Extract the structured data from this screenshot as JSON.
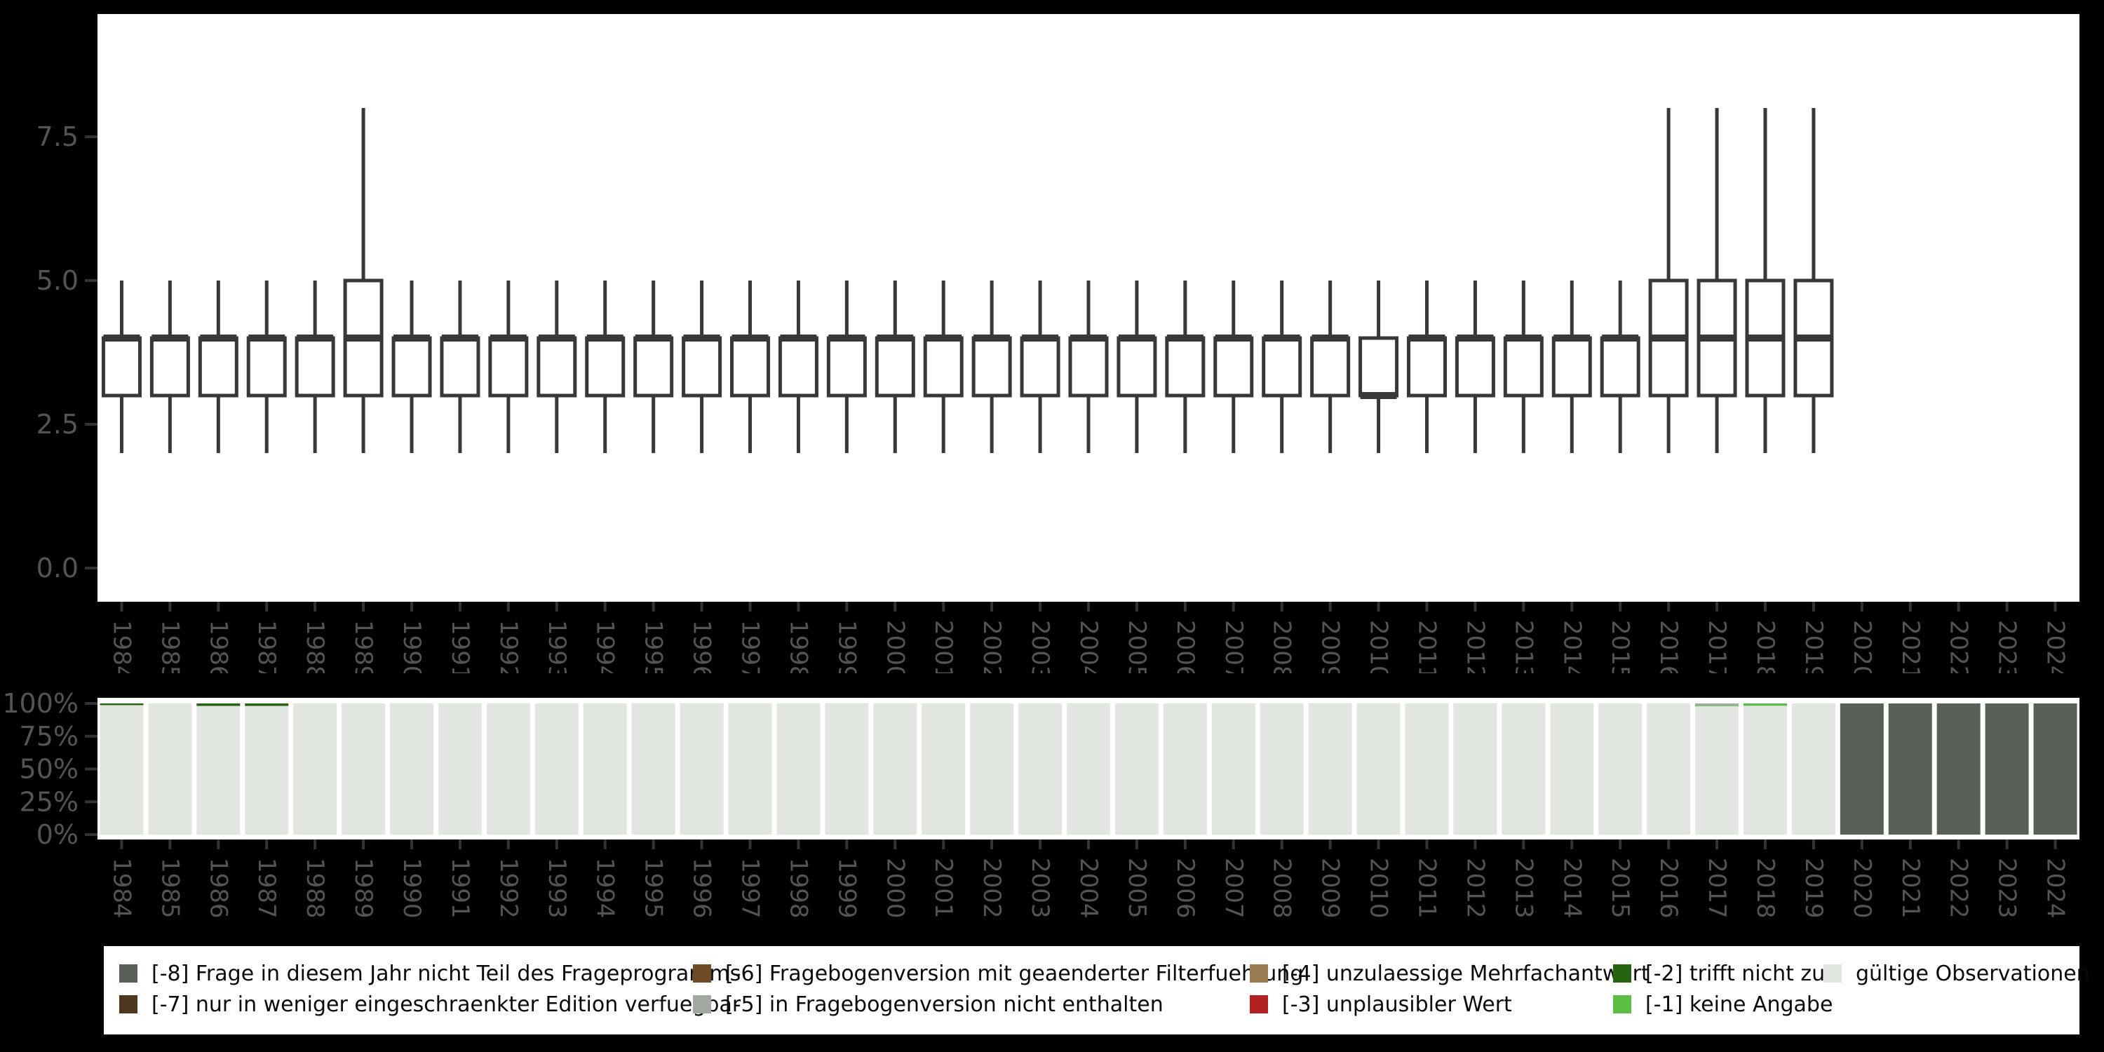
{
  "style": {
    "background": "#000000",
    "panel": "#ffffff",
    "tick": "#333333",
    "axis_text": "#545454",
    "box_stroke": "#383838",
    "legend_text": "#0a0a0a"
  },
  "colors": {
    "valid": "#e2e6e0",
    "-1": "#5abf44",
    "-2": "#266412",
    "-3": "#b32222",
    "-4": "#9a7a52",
    "-5": "#a3a7a2",
    "-6": "#6e4a26",
    "-7": "#4f3620",
    "-8": "#575f57"
  },
  "legend": {
    "rows": [
      [
        {
          "key": "-8",
          "label": "[-8] Frage in diesem Jahr nicht Teil des Frageprogramms"
        },
        {
          "key": "-6",
          "label": "[-6] Fragebogenversion mit geaenderter Filterfuehrung"
        },
        {
          "key": "-4",
          "label": "[-4] unzulaessige Mehrfachantwort"
        },
        {
          "key": "-2",
          "label": "[-2] trifft nicht zu"
        },
        {
          "key": "valid",
          "label": "gültige Observationen"
        }
      ],
      [
        {
          "key": "-7",
          "label": "[-7] nur in weniger eingeschraenkter Edition verfuegbar"
        },
        {
          "key": "-5",
          "label": "[-5] in Fragebogenversion nicht enthalten"
        },
        {
          "key": "-3",
          "label": "[-3] unplausibler Wert"
        },
        {
          "key": "-1",
          "label": "[-1] keine Angabe"
        }
      ]
    ]
  },
  "chart_data": [
    {
      "type": "boxplot",
      "title": "",
      "xlabel": "",
      "ylabel": "",
      "grid": false,
      "legend_position": "none",
      "ylim": [
        -0.6,
        9.6
      ],
      "yticks": [
        0,
        2.5,
        5,
        7.5
      ],
      "ytick_labels": [
        "0.0",
        "2.5",
        "5.0",
        "7.5"
      ],
      "categories": [
        "1984",
        "1985",
        "1986",
        "1987",
        "1988",
        "1989",
        "1990",
        "1991",
        "1992",
        "1993",
        "1994",
        "1995",
        "1996",
        "1997",
        "1998",
        "1999",
        "2000",
        "2001",
        "2002",
        "2003",
        "2004",
        "2005",
        "2006",
        "2007",
        "2008",
        "2009",
        "2010",
        "2011",
        "2012",
        "2013",
        "2014",
        "2015",
        "2016",
        "2017",
        "2018",
        "2019",
        "2020",
        "2021",
        "2022",
        "2023",
        "2024"
      ],
      "boxes": [
        {
          "lo": 2,
          "q1": 3,
          "md": 4,
          "q3": 4,
          "hi": 5
        },
        {
          "lo": 2,
          "q1": 3,
          "md": 4,
          "q3": 4,
          "hi": 5
        },
        {
          "lo": 2,
          "q1": 3,
          "md": 4,
          "q3": 4,
          "hi": 5
        },
        {
          "lo": 2,
          "q1": 3,
          "md": 4,
          "q3": 4,
          "hi": 5
        },
        {
          "lo": 2,
          "q1": 3,
          "md": 4,
          "q3": 4,
          "hi": 5
        },
        {
          "lo": 2,
          "q1": 3,
          "md": 4,
          "q3": 5,
          "hi": 8
        },
        {
          "lo": 2,
          "q1": 3,
          "md": 4,
          "q3": 4,
          "hi": 5
        },
        {
          "lo": 2,
          "q1": 3,
          "md": 4,
          "q3": 4,
          "hi": 5
        },
        {
          "lo": 2,
          "q1": 3,
          "md": 4,
          "q3": 4,
          "hi": 5
        },
        {
          "lo": 2,
          "q1": 3,
          "md": 4,
          "q3": 4,
          "hi": 5
        },
        {
          "lo": 2,
          "q1": 3,
          "md": 4,
          "q3": 4,
          "hi": 5
        },
        {
          "lo": 2,
          "q1": 3,
          "md": 4,
          "q3": 4,
          "hi": 5
        },
        {
          "lo": 2,
          "q1": 3,
          "md": 4,
          "q3": 4,
          "hi": 5
        },
        {
          "lo": 2,
          "q1": 3,
          "md": 4,
          "q3": 4,
          "hi": 5
        },
        {
          "lo": 2,
          "q1": 3,
          "md": 4,
          "q3": 4,
          "hi": 5
        },
        {
          "lo": 2,
          "q1": 3,
          "md": 4,
          "q3": 4,
          "hi": 5
        },
        {
          "lo": 2,
          "q1": 3,
          "md": 4,
          "q3": 4,
          "hi": 5
        },
        {
          "lo": 2,
          "q1": 3,
          "md": 4,
          "q3": 4,
          "hi": 5
        },
        {
          "lo": 2,
          "q1": 3,
          "md": 4,
          "q3": 4,
          "hi": 5
        },
        {
          "lo": 2,
          "q1": 3,
          "md": 4,
          "q3": 4,
          "hi": 5
        },
        {
          "lo": 2,
          "q1": 3,
          "md": 4,
          "q3": 4,
          "hi": 5
        },
        {
          "lo": 2,
          "q1": 3,
          "md": 4,
          "q3": 4,
          "hi": 5
        },
        {
          "lo": 2,
          "q1": 3,
          "md": 4,
          "q3": 4,
          "hi": 5
        },
        {
          "lo": 2,
          "q1": 3,
          "md": 4,
          "q3": 4,
          "hi": 5
        },
        {
          "lo": 2,
          "q1": 3,
          "md": 4,
          "q3": 4,
          "hi": 5
        },
        {
          "lo": 2,
          "q1": 3,
          "md": 4,
          "q3": 4,
          "hi": 5
        },
        {
          "lo": 2,
          "q1": 3,
          "md": 3,
          "q3": 4,
          "hi": 5
        },
        {
          "lo": 2,
          "q1": 3,
          "md": 4,
          "q3": 4,
          "hi": 5
        },
        {
          "lo": 2,
          "q1": 3,
          "md": 4,
          "q3": 4,
          "hi": 5
        },
        {
          "lo": 2,
          "q1": 3,
          "md": 4,
          "q3": 4,
          "hi": 5
        },
        {
          "lo": 2,
          "q1": 3,
          "md": 4,
          "q3": 4,
          "hi": 5
        },
        {
          "lo": 2,
          "q1": 3,
          "md": 4,
          "q3": 4,
          "hi": 5
        },
        {
          "lo": 2,
          "q1": 3,
          "md": 4,
          "q3": 5,
          "hi": 8
        },
        {
          "lo": 2,
          "q1": 3,
          "md": 4,
          "q3": 5,
          "hi": 8
        },
        {
          "lo": 2,
          "q1": 3,
          "md": 4,
          "q3": 5,
          "hi": 8
        },
        {
          "lo": 2,
          "q1": 3,
          "md": 4,
          "q3": 5,
          "hi": 8
        },
        null,
        null,
        null,
        null,
        null
      ]
    },
    {
      "type": "bar",
      "stacked": true,
      "title": "",
      "xlabel": "",
      "ylabel": "",
      "grid": false,
      "ylim": [
        0,
        100
      ],
      "yticks": [
        0,
        25,
        50,
        75,
        100
      ],
      "ytick_labels": [
        "0%",
        "25%",
        "50%",
        "75%",
        "100%"
      ],
      "categories": [
        "1984",
        "1985",
        "1986",
        "1987",
        "1988",
        "1989",
        "1990",
        "1991",
        "1992",
        "1993",
        "1994",
        "1995",
        "1996",
        "1997",
        "1998",
        "1999",
        "2000",
        "2001",
        "2002",
        "2003",
        "2004",
        "2005",
        "2006",
        "2007",
        "2008",
        "2009",
        "2010",
        "2011",
        "2012",
        "2013",
        "2014",
        "2015",
        "2016",
        "2017",
        "2018",
        "2019",
        "2020",
        "2021",
        "2022",
        "2023",
        "2024"
      ],
      "series": [
        {
          "name": "gültige Observationen",
          "key": "valid",
          "values": [
            98.7,
            100,
            98.1,
            98.1,
            100,
            100,
            100,
            100,
            100,
            100,
            100,
            100,
            100,
            100,
            100,
            100,
            100,
            100,
            100,
            100,
            100,
            100,
            100,
            100,
            100,
            100,
            100,
            100,
            100,
            100,
            100,
            100,
            100,
            97.9,
            98.2,
            100,
            0,
            0,
            0,
            0,
            0
          ]
        },
        {
          "name": "[-1] keine Angabe",
          "key": "-1",
          "values": [
            0,
            0,
            0,
            0,
            0,
            0,
            0,
            0,
            0,
            0,
            0,
            0,
            0,
            0,
            0,
            0,
            0,
            0,
            0,
            0,
            0,
            0,
            0,
            0,
            0,
            0,
            0,
            0,
            0,
            0,
            0,
            0,
            0,
            0.6,
            1.8,
            0,
            0,
            0,
            0,
            0,
            0
          ]
        },
        {
          "name": "[-2] trifft nicht zu",
          "key": "-2",
          "values": [
            1.3,
            0,
            1.9,
            1.9,
            0,
            0,
            0,
            0,
            0,
            0,
            0,
            0,
            0,
            0,
            0,
            0,
            0,
            0,
            0,
            0,
            0,
            0,
            0,
            0,
            0,
            0,
            0,
            0,
            0,
            0,
            0,
            0,
            0,
            0,
            0,
            0,
            0,
            0,
            0,
            0,
            0
          ]
        },
        {
          "name": "[-3] unplausibler Wert",
          "key": "-3",
          "values": [
            0,
            0,
            0,
            0,
            0,
            0,
            0,
            0,
            0,
            0,
            0,
            0,
            0,
            0,
            0,
            0,
            0,
            0,
            0,
            0,
            0,
            0,
            0,
            0,
            0,
            0,
            0,
            0,
            0,
            0,
            0,
            0,
            0,
            0,
            0,
            0,
            0,
            0,
            0,
            0,
            0
          ]
        },
        {
          "name": "[-4] unzulaessige Mehrfachantwort",
          "key": "-4",
          "values": [
            0,
            0,
            0,
            0,
            0,
            0,
            0,
            0,
            0,
            0,
            0,
            0,
            0,
            0,
            0,
            0,
            0,
            0,
            0,
            0,
            0,
            0,
            0,
            0,
            0,
            0,
            0,
            0,
            0,
            0,
            0,
            0,
            0,
            0,
            0,
            0,
            0,
            0,
            0,
            0,
            0
          ]
        },
        {
          "name": "[-5] in Fragebogenversion nicht enthalten",
          "key": "-5",
          "values": [
            0,
            0,
            0,
            0,
            0,
            0,
            0,
            0,
            0,
            0,
            0,
            0,
            0,
            0,
            0,
            0,
            0,
            0,
            0,
            0,
            0,
            0,
            0,
            0,
            0,
            0,
            0,
            0,
            0,
            0,
            0,
            0,
            0,
            1.5,
            0,
            0,
            0,
            0,
            0,
            0,
            0
          ]
        },
        {
          "name": "[-6] Fragebogenversion mit geaenderter Filterfuehrung",
          "key": "-6",
          "values": [
            0,
            0,
            0,
            0,
            0,
            0,
            0,
            0,
            0,
            0,
            0,
            0,
            0,
            0,
            0,
            0,
            0,
            0,
            0,
            0,
            0,
            0,
            0,
            0,
            0,
            0,
            0,
            0,
            0,
            0,
            0,
            0,
            0,
            0,
            0,
            0,
            0,
            0,
            0,
            0,
            0
          ]
        },
        {
          "name": "[-7] nur in weniger eingeschraenkter Edition verfuegbar",
          "key": "-7",
          "values": [
            0,
            0,
            0,
            0,
            0,
            0,
            0,
            0,
            0,
            0,
            0,
            0,
            0,
            0,
            0,
            0,
            0,
            0,
            0,
            0,
            0,
            0,
            0,
            0,
            0,
            0,
            0,
            0,
            0,
            0,
            0,
            0,
            0,
            0,
            0,
            0,
            0,
            0,
            0,
            0,
            0
          ]
        },
        {
          "name": "[-8] Frage in diesem Jahr nicht Teil des Frageprogramms",
          "key": "-8",
          "values": [
            0,
            0,
            0,
            0,
            0,
            0,
            0,
            0,
            0,
            0,
            0,
            0,
            0,
            0,
            0,
            0,
            0,
            0,
            0,
            0,
            0,
            0,
            0,
            0,
            0,
            0,
            0,
            0,
            0,
            0,
            0,
            0,
            0,
            0,
            0,
            0,
            100,
            100,
            100,
            100,
            100
          ]
        }
      ]
    }
  ]
}
